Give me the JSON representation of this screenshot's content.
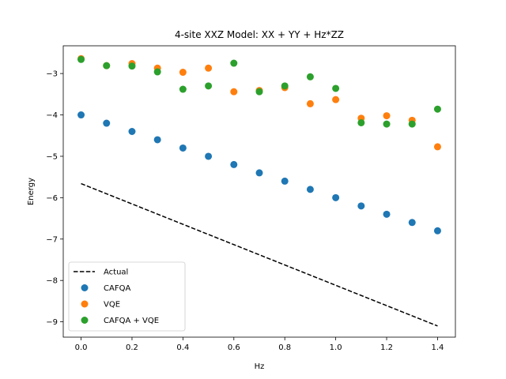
{
  "chart_data": {
    "type": "scatter",
    "title": "4-site XXZ Model: XX + YY + Hz*ZZ",
    "xlabel": "Hz",
    "ylabel": "Energy",
    "xlim": [
      -0.07,
      1.47
    ],
    "ylim": [
      -9.37,
      -2.33
    ],
    "xticks": [
      0.0,
      0.2,
      0.4,
      0.6,
      0.8,
      1.0,
      1.2,
      1.4
    ],
    "xtick_labels": [
      "0.0",
      "0.2",
      "0.4",
      "0.6",
      "0.8",
      "1.0",
      "1.2",
      "1.4"
    ],
    "yticks": [
      -3,
      -4,
      -5,
      -6,
      -7,
      -8,
      -9
    ],
    "ytick_labels": [
      "−3",
      "−4",
      "−5",
      "−6",
      "−7",
      "−8",
      "−9"
    ],
    "grid": false,
    "legend_position": "lower-left",
    "series": [
      {
        "name": "Actual",
        "kind": "line",
        "style": "dashed",
        "color": "#000000",
        "x": [
          0.0,
          1.4
        ],
        "y": [
          -5.66,
          -9.1
        ]
      },
      {
        "name": "CAFQA",
        "kind": "scatter",
        "color": "#1f77b4",
        "x": [
          0.0,
          0.1,
          0.2,
          0.3,
          0.4,
          0.5,
          0.6,
          0.7,
          0.8,
          0.9,
          1.0,
          1.1,
          1.2,
          1.3,
          1.4
        ],
        "y": [
          -4.0,
          -4.2,
          -4.4,
          -4.6,
          -4.8,
          -5.0,
          -5.2,
          -5.4,
          -5.6,
          -5.8,
          -6.0,
          -6.2,
          -6.4,
          -6.6,
          -6.8
        ]
      },
      {
        "name": "VQE",
        "kind": "scatter",
        "color": "#ff7f0e",
        "x": [
          0.0,
          0.1,
          0.2,
          0.3,
          0.4,
          0.5,
          0.6,
          0.7,
          0.8,
          0.9,
          1.0,
          1.1,
          1.2,
          1.3,
          1.4
        ],
        "y": [
          -2.64,
          -2.81,
          -2.76,
          -2.87,
          -2.97,
          -2.87,
          -3.44,
          -3.41,
          -3.34,
          -3.73,
          -3.63,
          -4.08,
          -4.02,
          -4.13,
          -4.77
        ]
      },
      {
        "name": "CAFQA + VQE",
        "kind": "scatter",
        "color": "#2ca02c",
        "x": [
          0.0,
          0.1,
          0.2,
          0.3,
          0.4,
          0.5,
          0.6,
          0.7,
          0.8,
          0.9,
          1.0,
          1.1,
          1.2,
          1.3,
          1.4
        ],
        "y": [
          -2.66,
          -2.81,
          -2.82,
          -2.96,
          -3.38,
          -3.3,
          -2.75,
          -3.44,
          -3.3,
          -3.08,
          -3.36,
          -4.19,
          -4.22,
          -4.22,
          -3.86
        ]
      }
    ]
  }
}
